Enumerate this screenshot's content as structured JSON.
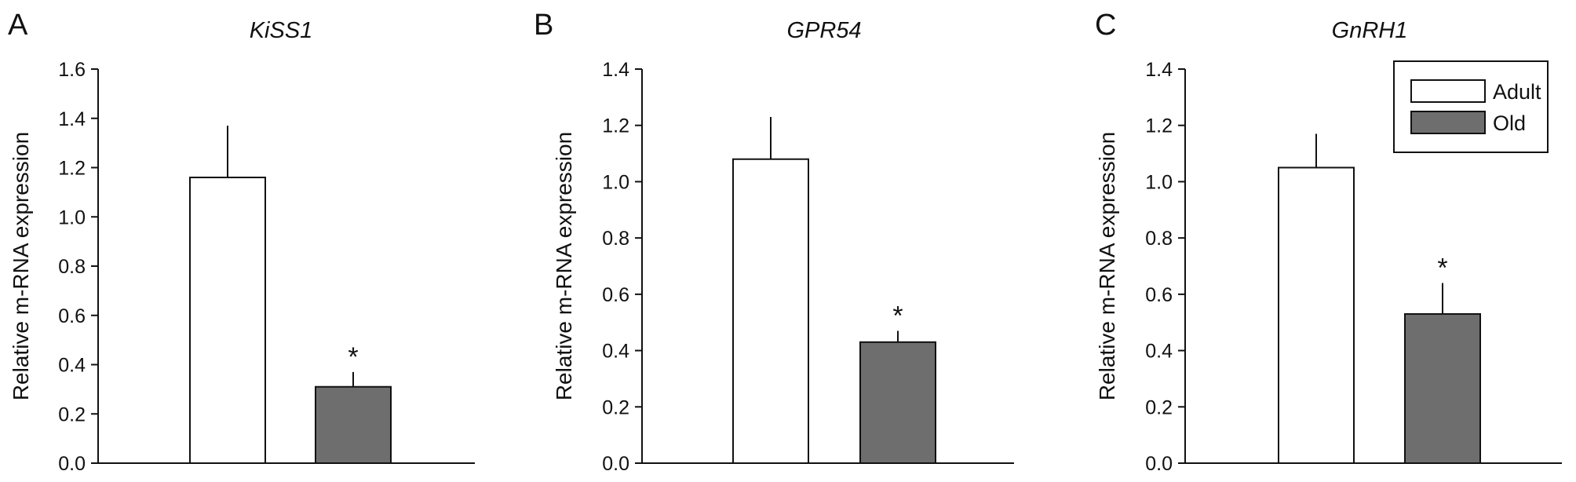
{
  "chart_data": [
    {
      "panel": "A",
      "type": "bar",
      "title": "KiSS1",
      "ylabel": "Relative m-RNA expression",
      "ylim": [
        0,
        1.6
      ],
      "yticks": [
        "0.0",
        "0.2",
        "0.4",
        "0.6",
        "0.8",
        "1.0",
        "1.2",
        "1.4",
        "1.6"
      ],
      "categories": [
        "Adult",
        "Old"
      ],
      "values": [
        1.16,
        0.31
      ],
      "errors": [
        0.21,
        0.06
      ],
      "significance": [
        "",
        "*"
      ],
      "colors": [
        "#ffffff",
        "#6e6e6e"
      ]
    },
    {
      "panel": "B",
      "type": "bar",
      "title": "GPR54",
      "ylabel": "Relative m-RNA expression",
      "ylim": [
        0,
        1.4
      ],
      "yticks": [
        "0.0",
        "0.2",
        "0.4",
        "0.6",
        "0.8",
        "1.0",
        "1.2",
        "1.4"
      ],
      "categories": [
        "Adult",
        "Old"
      ],
      "values": [
        1.08,
        0.43
      ],
      "errors": [
        0.15,
        0.04
      ],
      "significance": [
        "",
        "*"
      ],
      "colors": [
        "#ffffff",
        "#6e6e6e"
      ]
    },
    {
      "panel": "C",
      "type": "bar",
      "title": "GnRH1",
      "ylabel": "Relative m-RNA expression",
      "ylim": [
        0,
        1.4
      ],
      "yticks": [
        "0.0",
        "0.2",
        "0.4",
        "0.6",
        "0.8",
        "1.0",
        "1.2",
        "1.4"
      ],
      "categories": [
        "Adult",
        "Old"
      ],
      "values": [
        1.05,
        0.53
      ],
      "errors": [
        0.12,
        0.11
      ],
      "significance": [
        "",
        "*"
      ],
      "colors": [
        "#ffffff",
        "#6e6e6e"
      ],
      "legend": {
        "placement": "top-right",
        "entries": [
          {
            "label": "Adult",
            "color": "#ffffff"
          },
          {
            "label": "Old",
            "color": "#6e6e6e"
          }
        ]
      }
    }
  ]
}
